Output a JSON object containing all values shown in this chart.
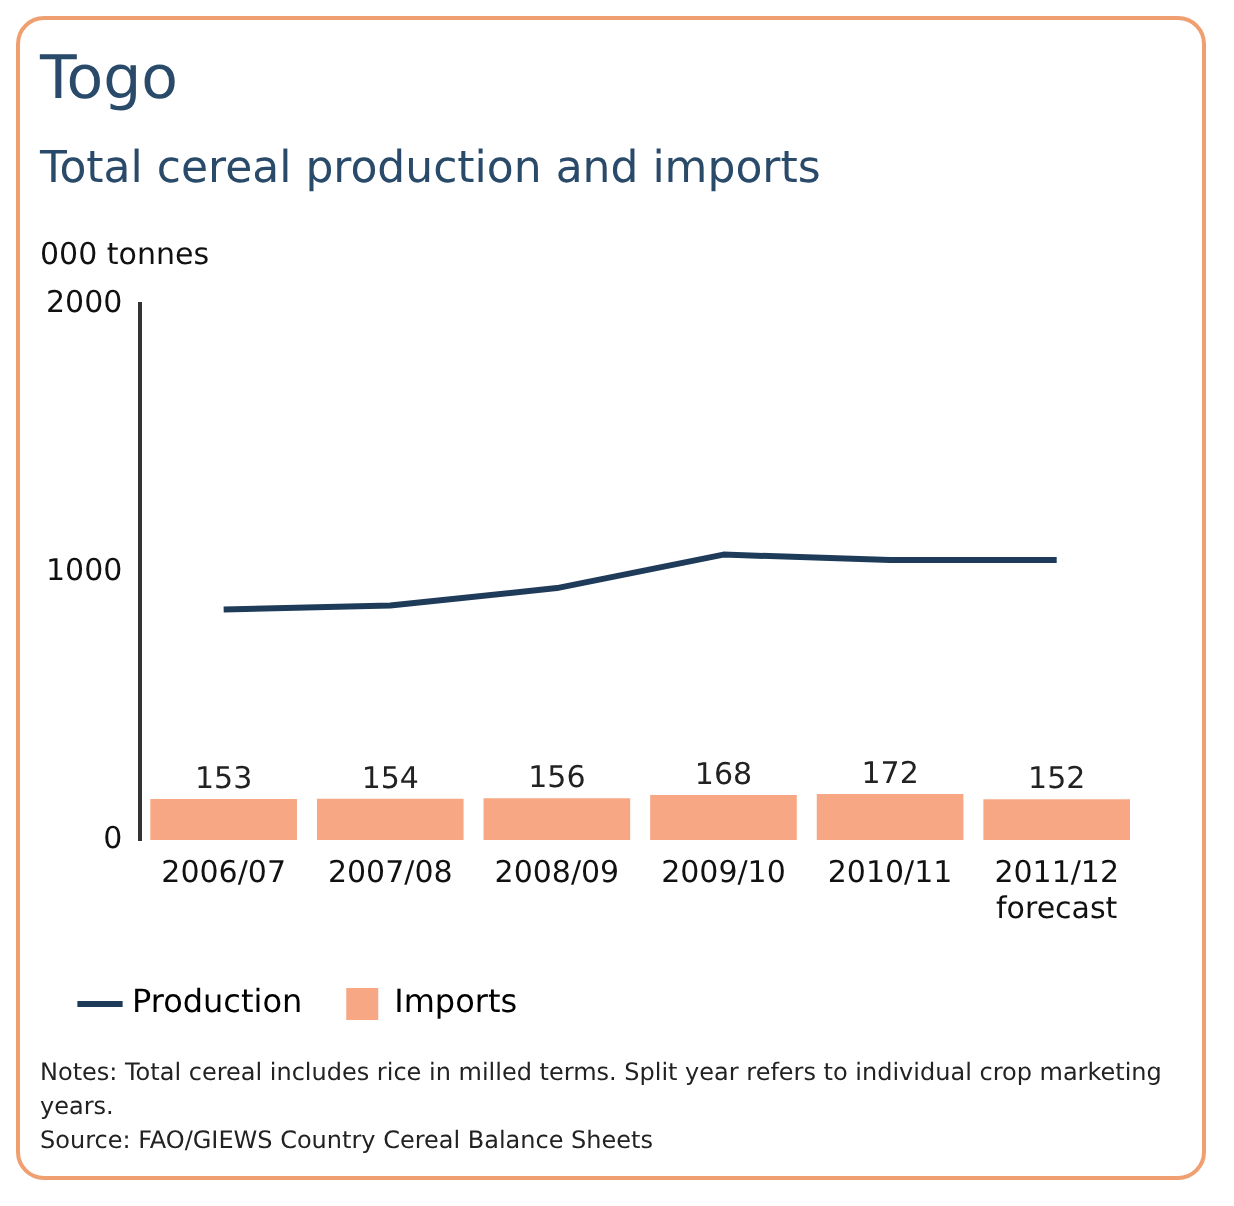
{
  "chart_data": {
    "type": "bar",
    "title": "Togo",
    "subtitle": "Total cereal production and imports",
    "ylabel": "000 tonnes",
    "categories": [
      "2006/07",
      "2007/08",
      "2008/09",
      "2009/10",
      "2010/11",
      "2011/12\nforecast"
    ],
    "series": [
      {
        "name": "Production",
        "type": "line",
        "color": "#1f3b5a",
        "values": [
          860,
          875,
          940,
          1065,
          1045,
          1045
        ]
      },
      {
        "name": "Imports",
        "color": "#f7a783",
        "values": [
          153,
          154,
          156,
          168,
          172,
          152
        ],
        "value_labels": [
          "153",
          "154",
          "156",
          "168",
          "172",
          "152"
        ]
      }
    ],
    "ylim": [
      0,
      2000
    ],
    "yticks": [
      0,
      1000,
      2000
    ],
    "grid": false,
    "legend": "bottom",
    "marker": "none",
    "annotations": [
      "Notes: Total cereal includes rice in milled terms. Split year refers to individual crop marketing years.",
      "Source: FAO/GIEWS Country Cereal Balance Sheets"
    ]
  }
}
